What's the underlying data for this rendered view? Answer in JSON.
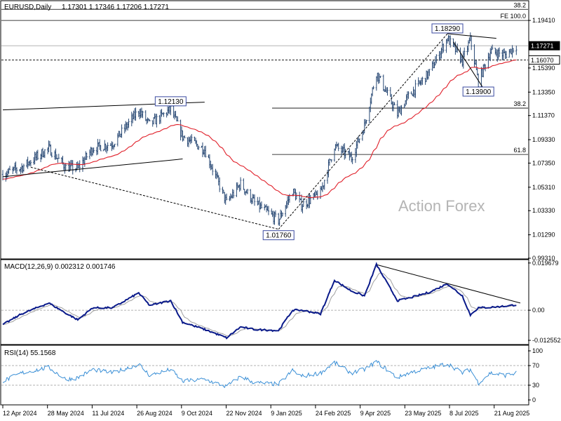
{
  "chart_data": {
    "type": "candlestick",
    "symbol_title": "EURUSD,Daily",
    "ohlc": "1.17301 1.17346 1.17206 1.17271",
    "watermark": "Action Forex",
    "main_panel": {
      "y_ticks": [
        "1.19410",
        "1.17271",
        "1.16070",
        "1.15390",
        "1.13350",
        "1.11370",
        "1.09330",
        "1.07350",
        "1.05310",
        "1.03330",
        "1.01290",
        "0.99310"
      ],
      "y_tick_values": [
        1.1941,
        1.1727,
        1.1607,
        1.1539,
        1.1335,
        1.1137,
        1.0933,
        1.0735,
        1.0531,
        1.0333,
        1.0129,
        0.9931
      ],
      "ylim": [
        0.9931,
        1.209
      ],
      "price_tag": "1.17271",
      "price_tag_value": 1.17271,
      "dotted_level_tag": "1.16070",
      "dotted_level_value": 1.1607,
      "fib_levels": [
        {
          "label": "38.2",
          "value": 1.2035,
          "scope": "full"
        },
        {
          "label": "FE 100.0",
          "value": 1.1941,
          "scope": "full"
        },
        {
          "label": "38.2",
          "value": 1.12,
          "scope": "right"
        },
        {
          "label": "61.8",
          "value": 1.0808,
          "scope": "right"
        }
      ],
      "annotations": [
        {
          "label": "1.12130",
          "value": 1.1213,
          "date": "2024-09-27"
        },
        {
          "label": "1.01760",
          "value": 1.0176,
          "date": "2025-01-13"
        },
        {
          "label": "1.18290",
          "value": 1.1829,
          "date": "2025-07-01"
        },
        {
          "label": "1.13900",
          "value": 1.139,
          "date": "2025-08-01"
        }
      ],
      "ma_name": "EMA(55)",
      "horizontal_ref": 1.1727
    },
    "x_ticks": [
      "12 Apr 2024",
      "28 May 2024",
      "11 Jul 2024",
      "26 Aug 2024",
      "9 Oct 2024",
      "22 Nov 2024",
      "9 Jan 2025",
      "24 Feb 2025",
      "9 Apr 2025",
      "23 May 2025",
      "8 Jul 2025",
      "21 Aug 2025"
    ],
    "price_path": [
      [
        "2024-04-12",
        1.064
      ],
      [
        "2024-05-01",
        1.07
      ],
      [
        "2024-05-28",
        1.086
      ],
      [
        "2024-06-14",
        1.07
      ],
      [
        "2024-06-26",
        1.069
      ],
      [
        "2024-07-11",
        1.086
      ],
      [
        "2024-07-31",
        1.09
      ],
      [
        "2024-08-26",
        1.118
      ],
      [
        "2024-09-06",
        1.106
      ],
      [
        "2024-09-27",
        1.119
      ],
      [
        "2024-10-09",
        1.096
      ],
      [
        "2024-10-31",
        1.085
      ],
      [
        "2024-11-22",
        1.04
      ],
      [
        "2024-12-06",
        1.056
      ],
      [
        "2024-12-20",
        1.04
      ],
      [
        "2025-01-13",
        1.025
      ],
      [
        "2025-01-27",
        1.05
      ],
      [
        "2025-02-05",
        1.038
      ],
      [
        "2025-02-24",
        1.048
      ],
      [
        "2025-03-10",
        1.088
      ],
      [
        "2025-03-27",
        1.078
      ],
      [
        "2025-04-09",
        1.105
      ],
      [
        "2025-04-21",
        1.15
      ],
      [
        "2025-05-12",
        1.115
      ],
      [
        "2025-05-23",
        1.13
      ],
      [
        "2025-06-13",
        1.15
      ],
      [
        "2025-07-01",
        1.179
      ],
      [
        "2025-07-16",
        1.16
      ],
      [
        "2025-07-24",
        1.178
      ],
      [
        "2025-08-01",
        1.142
      ],
      [
        "2025-08-13",
        1.168
      ],
      [
        "2025-08-28",
        1.165
      ],
      [
        "2025-09-08",
        1.1727
      ]
    ],
    "macd": {
      "label": "MACD(12,26,9) 0.002312 0.001746",
      "y_ticks": [
        "0.019679",
        "0.00",
        "-0.012552"
      ],
      "y_tick_values": [
        0.019679,
        0.0,
        -0.012552
      ],
      "ylim": [
        -0.014,
        0.0205
      ],
      "path": [
        [
          "2024-04-12",
          -0.006
        ],
        [
          "2024-05-01",
          -0.0015
        ],
        [
          "2024-05-28",
          0.003
        ],
        [
          "2024-06-14",
          -0.0012
        ],
        [
          "2024-06-26",
          -0.004
        ],
        [
          "2024-07-11",
          0.001
        ],
        [
          "2024-07-31",
          0.001
        ],
        [
          "2024-08-26",
          0.0072
        ],
        [
          "2024-09-06",
          0.002
        ],
        [
          "2024-09-27",
          0.004
        ],
        [
          "2024-10-09",
          -0.005
        ],
        [
          "2024-10-31",
          -0.008
        ],
        [
          "2024-11-22",
          -0.0115
        ],
        [
          "2024-12-06",
          -0.007
        ],
        [
          "2024-12-20",
          -0.008
        ],
        [
          "2025-01-13",
          -0.0085
        ],
        [
          "2025-01-27",
          0.0
        ],
        [
          "2025-02-05",
          0.0
        ],
        [
          "2025-02-24",
          -0.0015
        ],
        [
          "2025-03-10",
          0.0125
        ],
        [
          "2025-03-27",
          0.008
        ],
        [
          "2025-04-09",
          0.006
        ],
        [
          "2025-04-21",
          0.019
        ],
        [
          "2025-05-12",
          0.004
        ],
        [
          "2025-05-23",
          0.005
        ],
        [
          "2025-06-13",
          0.0075
        ],
        [
          "2025-07-01",
          0.011
        ],
        [
          "2025-07-16",
          0.006
        ],
        [
          "2025-07-24",
          -0.002
        ],
        [
          "2025-08-01",
          0.001
        ],
        [
          "2025-08-13",
          0.0012
        ],
        [
          "2025-08-28",
          0.0017
        ],
        [
          "2025-09-08",
          0.0023
        ]
      ]
    },
    "rsi": {
      "label": "RSI(14) 55.1568",
      "y_ticks": [
        "100",
        "70",
        "30",
        "0"
      ],
      "y_tick_values": [
        100,
        70,
        30,
        0
      ],
      "ylim": [
        0,
        100
      ],
      "path": [
        [
          "2024-04-12",
          38
        ],
        [
          "2024-05-01",
          55
        ],
        [
          "2024-05-28",
          66
        ],
        [
          "2024-06-14",
          42
        ],
        [
          "2024-06-26",
          45
        ],
        [
          "2024-07-11",
          62
        ],
        [
          "2024-07-31",
          55
        ],
        [
          "2024-08-26",
          73
        ],
        [
          "2024-09-06",
          50
        ],
        [
          "2024-09-27",
          62
        ],
        [
          "2024-10-09",
          38
        ],
        [
          "2024-10-31",
          42
        ],
        [
          "2024-11-22",
          27
        ],
        [
          "2024-12-06",
          48
        ],
        [
          "2024-12-20",
          35
        ],
        [
          "2025-01-13",
          32
        ],
        [
          "2025-01-27",
          60
        ],
        [
          "2025-02-05",
          48
        ],
        [
          "2025-02-24",
          55
        ],
        [
          "2025-03-10",
          76
        ],
        [
          "2025-03-27",
          55
        ],
        [
          "2025-04-09",
          62
        ],
        [
          "2025-04-21",
          78
        ],
        [
          "2025-05-12",
          45
        ],
        [
          "2025-05-23",
          55
        ],
        [
          "2025-06-13",
          65
        ],
        [
          "2025-07-01",
          74
        ],
        [
          "2025-07-16",
          55
        ],
        [
          "2025-07-24",
          62
        ],
        [
          "2025-08-01",
          35
        ],
        [
          "2025-08-13",
          55
        ],
        [
          "2025-08-28",
          50
        ],
        [
          "2025-09-08",
          55
        ]
      ]
    },
    "trendlines": [
      {
        "name": "upper-channel",
        "from": [
          "2024-04-12",
          1.1185
        ],
        "to": [
          "2024-10-31",
          1.125
        ],
        "panel": "main"
      },
      {
        "name": "lower-channel",
        "from": [
          "2024-04-12",
          1.062
        ],
        "to": [
          "2024-10-09",
          1.077
        ],
        "panel": "main"
      },
      {
        "name": "dashed-low-link",
        "from": [
          "2024-05-10",
          1.07
        ],
        "to": [
          "2025-01-13",
          1.0176
        ],
        "panel": "main",
        "dashed": true
      },
      {
        "name": "dashed-rise",
        "from": [
          "2025-01-13",
          1.0176
        ],
        "to": [
          "2025-07-01",
          1.1829
        ],
        "panel": "main",
        "dashed": true
      },
      {
        "name": "triangle-top",
        "from": [
          "2025-07-01",
          1.1829
        ],
        "to": [
          "2025-08-19",
          1.179
        ],
        "panel": "main"
      },
      {
        "name": "triangle-leg",
        "from": [
          "2025-07-07",
          1.176
        ],
        "to": [
          "2025-08-05",
          1.138
        ],
        "panel": "main"
      },
      {
        "name": "macd-trend",
        "from": [
          "2025-04-21",
          0.019
        ],
        "to": [
          "2025-09-12",
          0.003
        ],
        "panel": "macd"
      }
    ],
    "colors": {
      "background": "#ffffff",
      "candles": "#2a4a75",
      "ma": "#e0202a",
      "macd": "#0a1a8a",
      "signal": "#a0a0a0",
      "rsi": "#3a8fd6",
      "grid": "#000000"
    }
  }
}
